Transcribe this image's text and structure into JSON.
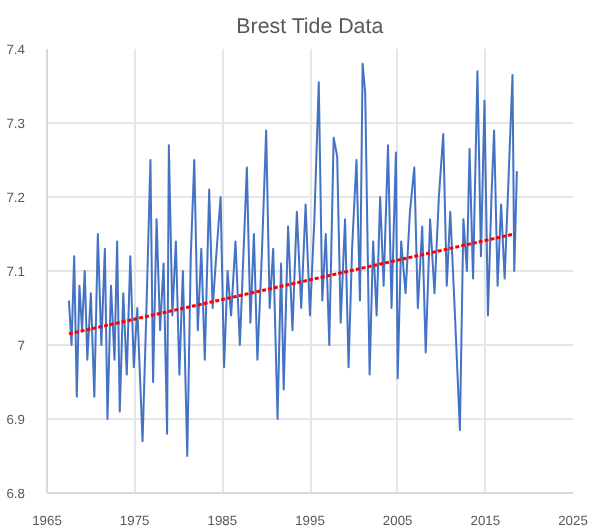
{
  "chart_data": {
    "type": "line",
    "title": "Brest Tide Data",
    "xlim": [
      1965,
      2025
    ],
    "xticks": [
      1965,
      1975,
      1985,
      1995,
      2005,
      2015,
      2025
    ],
    "ylim": [
      6.8,
      7.4
    ],
    "yticks": [
      6.8,
      6.9,
      7,
      7.1,
      7.2,
      7.3,
      7.4
    ],
    "grid": true,
    "series": [
      {
        "color": "#4472c4",
        "line_style": "solid",
        "x": [
          1967.5,
          1967.8,
          1968.1,
          1968.4,
          1968.7,
          1969.0,
          1969.3,
          1969.6,
          1970.0,
          1970.4,
          1970.8,
          1971.2,
          1971.6,
          1971.9,
          1972.3,
          1972.7,
          1973.0,
          1973.3,
          1973.7,
          1974.1,
          1974.5,
          1974.9,
          1975.3,
          1975.9,
          1976.3,
          1976.8,
          1977.1,
          1977.5,
          1977.9,
          1978.3,
          1978.7,
          1978.9,
          1979.3,
          1979.7,
          1980.1,
          1980.5,
          1981.0,
          1981.4,
          1981.8,
          1982.2,
          1982.6,
          1983.0,
          1983.5,
          1983.9,
          1984.3,
          1984.8,
          1985.2,
          1985.6,
          1986.0,
          1986.5,
          1987.0,
          1987.4,
          1987.8,
          1988.2,
          1988.6,
          1989.0,
          1989.5,
          1990.0,
          1990.4,
          1990.8,
          1991.3,
          1991.7,
          1992.0,
          1992.5,
          1993.0,
          1993.5,
          1994.0,
          1994.5,
          1995.0,
          1995.5,
          1996.0,
          1996.4,
          1996.8,
          1997.2,
          1997.7,
          1998.1,
          1998.5,
          1999.0,
          1999.4,
          1999.8,
          2000.3,
          2000.7,
          2001.0,
          2001.3,
          2001.8,
          2002.2,
          2002.6,
          2003.0,
          2003.4,
          2003.9,
          2004.3,
          2004.8,
          2005.0,
          2005.4,
          2005.9,
          2006.4,
          2006.9,
          2007.3,
          2007.8,
          2008.2,
          2008.7,
          2009.2,
          2009.7,
          2010.2,
          2010.6,
          2011.0,
          2011.5,
          2012.1,
          2012.5,
          2012.9,
          2013.2,
          2013.6,
          2014.1,
          2014.5,
          2014.9,
          2015.3,
          2015.7,
          2016.0,
          2016.4,
          2016.8,
          2017.2,
          2017.6,
          2018.1,
          2018.3,
          2018.6
        ],
        "values": [
          7.06,
          7.0,
          7.12,
          6.93,
          7.08,
          7.02,
          7.1,
          6.98,
          7.07,
          6.93,
          7.15,
          7.0,
          7.13,
          6.9,
          7.08,
          6.98,
          7.14,
          6.91,
          7.07,
          6.96,
          7.12,
          6.97,
          7.05,
          6.87,
          7.03,
          7.25,
          6.95,
          7.17,
          7.02,
          7.11,
          6.88,
          7.27,
          7.04,
          7.14,
          6.96,
          7.1,
          6.85,
          7.12,
          7.25,
          7.02,
          7.13,
          6.98,
          7.21,
          7.05,
          7.12,
          7.2,
          6.97,
          7.1,
          7.04,
          7.14,
          7.0,
          7.12,
          7.24,
          7.03,
          7.15,
          6.98,
          7.12,
          7.29,
          7.05,
          7.13,
          6.9,
          7.11,
          6.94,
          7.16,
          7.02,
          7.18,
          7.05,
          7.19,
          7.04,
          7.17,
          7.355,
          7.06,
          7.15,
          7.0,
          7.28,
          7.255,
          7.03,
          7.17,
          6.97,
          7.13,
          7.25,
          7.06,
          7.38,
          7.34,
          6.96,
          7.14,
          7.04,
          7.2,
          7.08,
          7.27,
          7.05,
          7.26,
          6.955,
          7.14,
          7.07,
          7.18,
          7.24,
          7.05,
          7.16,
          6.99,
          7.17,
          7.07,
          7.2,
          7.285,
          7.08,
          7.18,
          7.05,
          6.885,
          7.17,
          7.1,
          7.265,
          7.09,
          7.37,
          7.12,
          7.33,
          7.04,
          7.2,
          7.29,
          7.08,
          7.19,
          7.09,
          7.21,
          7.365,
          7.1,
          7.235
        ]
      },
      {
        "color": "#ff0000",
        "line_style": "dotted",
        "x": [
          1967.5,
          2018.3
        ],
        "values": [
          7.015,
          7.15
        ]
      }
    ]
  }
}
